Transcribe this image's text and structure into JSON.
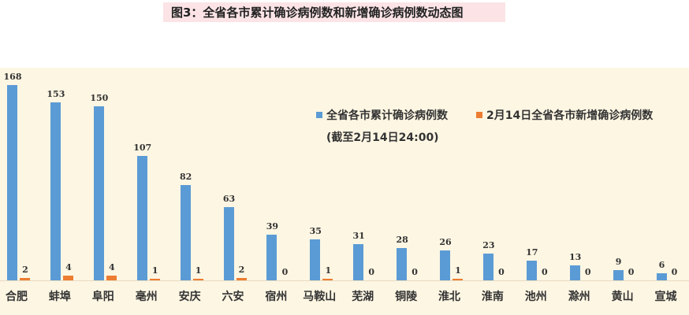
{
  "title": "图3：全省各市累计确诊病例数和新增确诊病例数动态图",
  "legend": {
    "series1": "全省各市累计确诊病例数",
    "series1_sub": "(截至2月14日24:00)",
    "series2": "2月14日全省各市新增确诊病例数"
  },
  "colors": {
    "series1": "#5b9bd5",
    "series2": "#ed7d31",
    "background": "#fdf6e3",
    "title_bg": "#fbe3e6"
  },
  "chart_data": {
    "type": "bar",
    "title": "图3：全省各市累计确诊病例数和新增确诊病例数动态图",
    "categories": [
      "合肥",
      "蚌埠",
      "阜阳",
      "亳州",
      "安庆",
      "六安",
      "宿州",
      "马鞍山",
      "芜湖",
      "铜陵",
      "淮北",
      "淮南",
      "池州",
      "滁州",
      "黄山",
      "宣城"
    ],
    "series": [
      {
        "name": "全省各市累计确诊病例数 (截至2月14日24:00)",
        "values": [
          168,
          153,
          150,
          107,
          82,
          63,
          39,
          35,
          31,
          28,
          26,
          23,
          17,
          13,
          9,
          6
        ]
      },
      {
        "name": "2月14日全省各市新增确诊病例数",
        "values": [
          2,
          4,
          4,
          1,
          1,
          2,
          0,
          1,
          0,
          0,
          1,
          0,
          0,
          0,
          0,
          0
        ]
      }
    ],
    "xlabel": "",
    "ylabel": "",
    "ylim": [
      0,
      170
    ],
    "grid": false,
    "legend_position": "upper right",
    "data_labels": true
  }
}
